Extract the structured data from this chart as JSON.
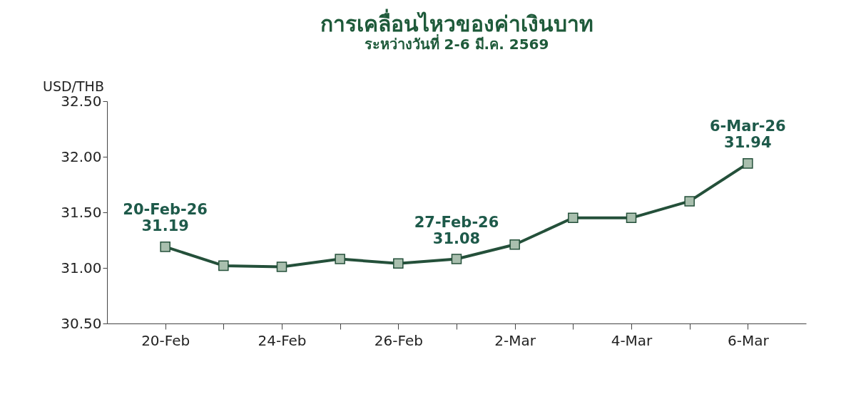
{
  "chart_data": {
    "type": "line",
    "title": "การเคลื่อนไหวของค่าเงินบาท",
    "subtitle": "ระหว่างวันที่ 2-6 มี.ค. 2569",
    "ylabel": "USD/THB",
    "categories": [
      "20-Feb",
      null,
      "24-Feb",
      null,
      "26-Feb",
      null,
      "2-Mar",
      null,
      "4-Mar",
      null,
      "6-Mar"
    ],
    "series": [
      {
        "color": "#24503a",
        "values": [
          31.19,
          31.02,
          31.01,
          31.08,
          31.04,
          31.08,
          31.21,
          31.45,
          31.45,
          31.6,
          31.94
        ],
        "value_labels": [
          "20-Feb-26\n31.19",
          null,
          null,
          null,
          null,
          "27-Feb-26\n31.08",
          null,
          null,
          null,
          null,
          "6-Mar-26\n31.94"
        ]
      }
    ],
    "ylim": [
      30.5,
      32.5
    ],
    "yticks": [
      "30.50",
      "31.00",
      "31.50",
      "32.00",
      "32.50"
    ],
    "grid": false,
    "marker": "square",
    "line_style": "solid"
  }
}
